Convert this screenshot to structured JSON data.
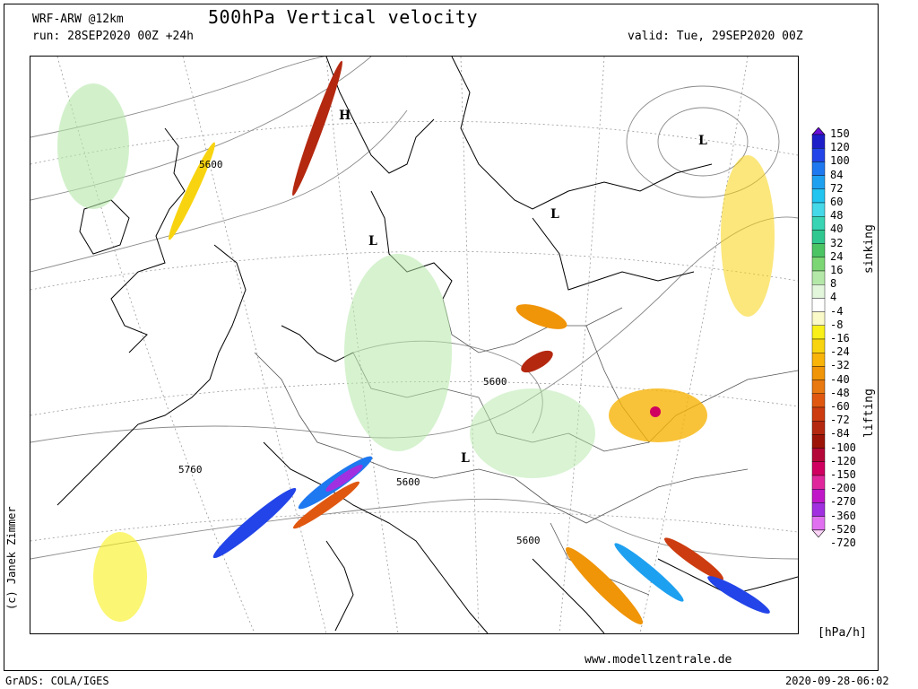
{
  "header": {
    "model": "WRF-ARW @12km",
    "run": "run: 28SEP2020 00Z +24h",
    "title": "500hPa Vertical velocity",
    "valid": "valid: Tue, 29SEP2020 00Z"
  },
  "footer": {
    "credit": "(c) Janek Zimmer",
    "website": "www.modellzentrale.de",
    "software": "GrADS: COLA/IGES",
    "timestamp": "2020-09-28-06:02"
  },
  "legend": {
    "unit": "[hPa/h]",
    "sinking_label": "sinking",
    "lifting_label": "lifting",
    "levels": [
      {
        "label": "150",
        "color": "#6a0fd8"
      },
      {
        "label": "120",
        "color": "#1e1ec8"
      },
      {
        "label": "100",
        "color": "#2244e8"
      },
      {
        "label": "84",
        "color": "#1e78f0"
      },
      {
        "label": "72",
        "color": "#1ea0f0"
      },
      {
        "label": "60",
        "color": "#22c4f0"
      },
      {
        "label": "48",
        "color": "#44d8e8"
      },
      {
        "label": "40",
        "color": "#38d4b4"
      },
      {
        "label": "32",
        "color": "#30c890"
      },
      {
        "label": "24",
        "color": "#4cc464"
      },
      {
        "label": "16",
        "color": "#7cd674"
      },
      {
        "label": "8",
        "color": "#b4e8a8"
      },
      {
        "label": "4",
        "color": "#e2f6dc"
      },
      {
        "label": "-4",
        "color": "#ffffff"
      },
      {
        "label": "-8",
        "color": "#fafac8"
      },
      {
        "label": "-16",
        "color": "#f8f018"
      },
      {
        "label": "-24",
        "color": "#f8d410"
      },
      {
        "label": "-32",
        "color": "#f8b408"
      },
      {
        "label": "-40",
        "color": "#f09408"
      },
      {
        "label": "-48",
        "color": "#e87810"
      },
      {
        "label": "-60",
        "color": "#e05810"
      },
      {
        "label": "-72",
        "color": "#cc3c10"
      },
      {
        "label": "-84",
        "color": "#b42810"
      },
      {
        "label": "-100",
        "color": "#9c1408"
      },
      {
        "label": "-120",
        "color": "#b40838"
      },
      {
        "label": "-150",
        "color": "#d00060"
      },
      {
        "label": "-200",
        "color": "#e0289c"
      },
      {
        "label": "-270",
        "color": "#c018c8"
      },
      {
        "label": "-360",
        "color": "#a030e0"
      },
      {
        "label": "-520",
        "color": "#e070f0"
      },
      {
        "label": "-720",
        "color": "#fcd4f8"
      }
    ]
  },
  "map": {
    "pressure_labels": [
      "H",
      "L",
      "L",
      "L",
      "L"
    ],
    "contour_labels": [
      "5600",
      "5600",
      "5600",
      "5600",
      "5760",
      "5600"
    ]
  }
}
